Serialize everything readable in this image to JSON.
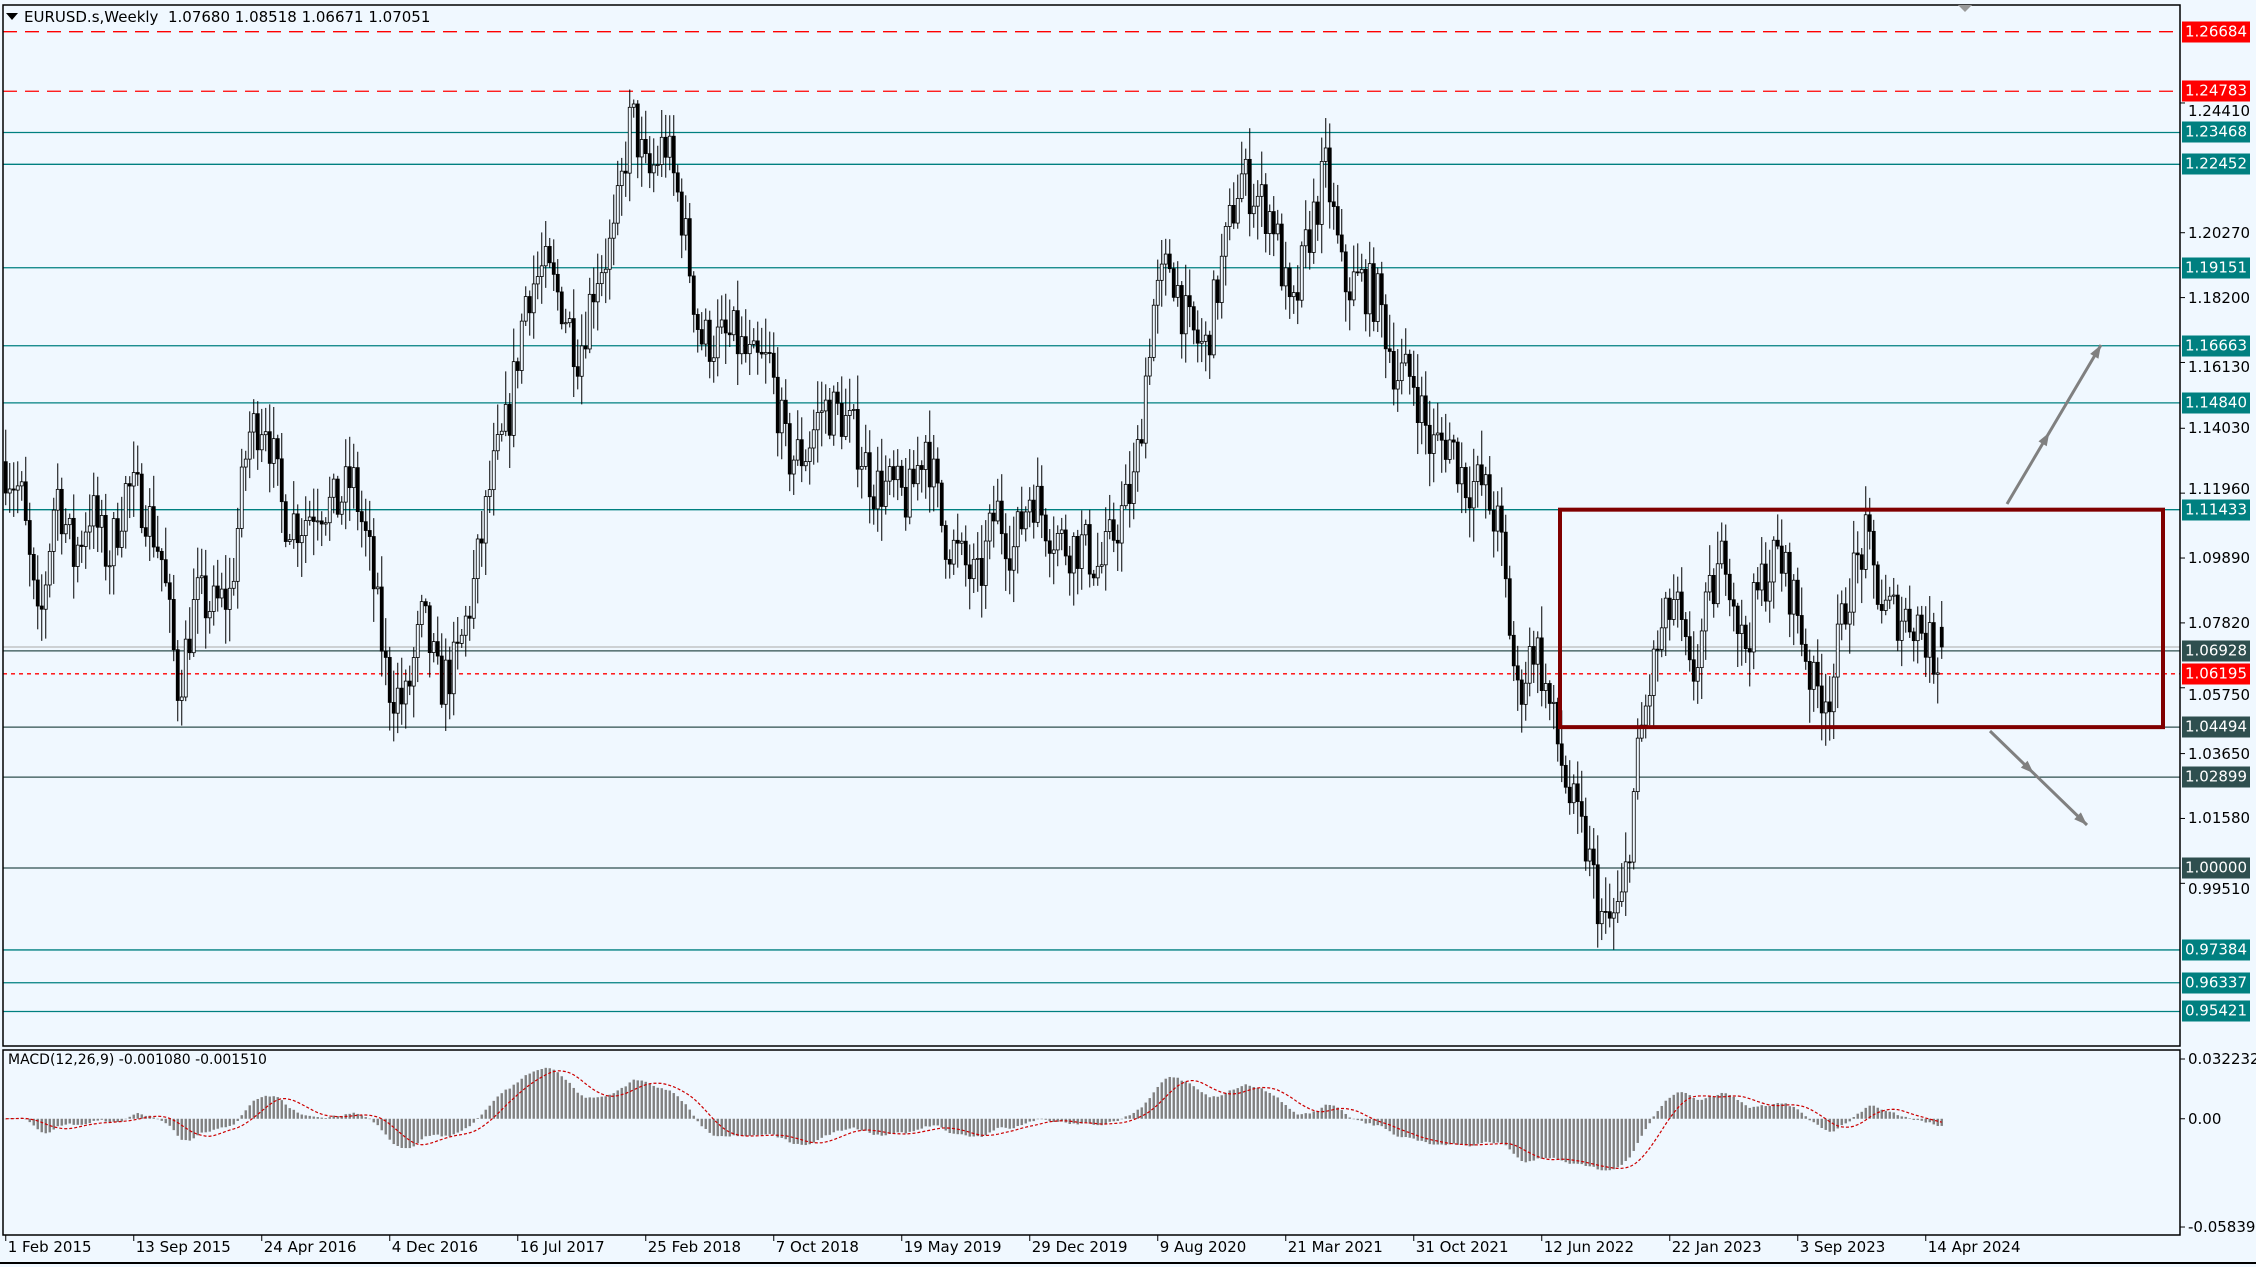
{
  "header": {
    "symbol": "EURUSD.s,Weekly",
    "ohlc": "1.07680 1.08518 1.06671 1.07051"
  },
  "macd_label": "MACD(12,26,9) -0.001080 -0.001510",
  "colors": {
    "background": "#f0f8ff",
    "teal_level": "#008080",
    "slate_level": "#2f4f4f",
    "red_level": "#ff0000",
    "box": "#800000",
    "arrow": "#808080",
    "macd_hist": "#808080",
    "macd_signal": "#cc0000",
    "bull_body": "#f0f8ff",
    "bear_body": "#000000"
  },
  "chart_data": {
    "type": "candlestick",
    "timeframe": "Weekly",
    "monthly_closes_start": "2015-01",
    "monthly_closes": [
      1.129,
      1.119,
      1.073,
      1.122,
      1.099,
      1.115,
      1.098,
      1.121,
      1.117,
      1.1,
      1.057,
      1.086,
      1.083,
      1.087,
      1.138,
      1.145,
      1.113,
      1.11,
      1.117,
      1.115,
      1.124,
      1.098,
      1.059,
      1.052,
      1.08,
      1.058,
      1.065,
      1.09,
      1.124,
      1.143,
      1.184,
      1.191,
      1.181,
      1.164,
      1.19,
      1.2,
      1.241,
      1.219,
      1.232,
      1.208,
      1.169,
      1.168,
      1.169,
      1.16,
      1.161,
      1.131,
      1.132,
      1.147,
      1.145,
      1.137,
      1.122,
      1.121,
      1.117,
      1.137,
      1.107,
      1.098,
      1.09,
      1.115,
      1.101,
      1.121,
      1.109,
      1.103,
      1.103,
      1.095,
      1.11,
      1.123,
      1.178,
      1.194,
      1.172,
      1.165,
      1.193,
      1.221,
      1.214,
      1.207,
      1.173,
      1.202,
      1.223,
      1.186,
      1.187,
      1.181,
      1.158,
      1.156,
      1.134,
      1.137,
      1.123,
      1.122,
      1.107,
      1.054,
      1.073,
      1.048,
      1.022,
      1.005,
      0.98,
      0.988,
      1.04,
      1.07,
      1.086,
      1.058,
      1.084,
      1.102,
      1.069,
      1.091,
      1.1,
      1.084,
      1.057,
      1.057,
      1.089,
      1.104,
      1.082,
      1.081,
      1.079,
      1.067,
      1.0705
    ],
    "last_bar": {
      "open": 1.0768,
      "high": 1.08518,
      "low": 1.06671,
      "close": 1.07051
    },
    "price_axis_ticks": [
      "1.24410",
      "1.20270",
      "1.18200",
      "1.16130",
      "1.14030",
      "1.11960",
      "1.09890",
      "1.07820",
      "1.05750",
      "1.03650",
      "1.01580",
      "0.99510"
    ],
    "levels": [
      {
        "value": "1.26684",
        "style": "dashed",
        "color": "#ff0000",
        "label_bg": "#ff0000"
      },
      {
        "value": "1.24783",
        "style": "dashed",
        "color": "#ff0000",
        "label_bg": "#ff0000"
      },
      {
        "value": "1.23468",
        "style": "solid",
        "color": "#008080",
        "label_bg": "#008080"
      },
      {
        "value": "1.22452",
        "style": "solid",
        "color": "#008080",
        "label_bg": "#008080"
      },
      {
        "value": "1.19151",
        "style": "solid",
        "color": "#008080",
        "label_bg": "#008080"
      },
      {
        "value": "1.16663",
        "style": "solid",
        "color": "#008080",
        "label_bg": "#008080"
      },
      {
        "value": "1.14840",
        "style": "solid",
        "color": "#008080",
        "label_bg": "#008080"
      },
      {
        "value": "1.11433",
        "style": "solid",
        "color": "#008080",
        "label_bg": "#008080"
      },
      {
        "value": "1.06928",
        "style": "solid",
        "color": "#2f4f4f",
        "label_bg": "#2f4f4f"
      },
      {
        "value": "1.06195",
        "style": "dotted",
        "color": "#ff0000",
        "label_bg": "#ff0000"
      },
      {
        "value": "1.04494",
        "style": "solid",
        "color": "#2f4f4f",
        "label_bg": "#2f4f4f"
      },
      {
        "value": "1.02899",
        "style": "solid",
        "color": "#2f4f4f",
        "label_bg": "#2f4f4f"
      },
      {
        "value": "1.00000",
        "style": "solid",
        "color": "#2f4f4f",
        "label_bg": "#2f4f4f"
      },
      {
        "value": "0.97384",
        "style": "solid",
        "color": "#008080",
        "label_bg": "#008080"
      },
      {
        "value": "0.96337",
        "style": "solid",
        "color": "#008080",
        "label_bg": "#008080"
      },
      {
        "value": "0.95421",
        "style": "solid",
        "color": "#008080",
        "label_bg": "#008080"
      }
    ],
    "current_price": "1.07051",
    "range_box": {
      "top": 1.11433,
      "bottom": 1.04494,
      "from": "2022-12",
      "to": "2025-04"
    },
    "macd_axis_ticks": [
      "0.032232",
      "0.00",
      "-0.058391"
    ],
    "macd_range": [
      -0.058391,
      0.032232
    ],
    "date_labels": [
      "1 Feb 2015",
      "13 Sep 2015",
      "24 Apr 2016",
      "4 Dec 2016",
      "16 Jul 2017",
      "25 Feb 2018",
      "7 Oct 2018",
      "19 May 2019",
      "29 Dec 2019",
      "9 Aug 2020",
      "21 Mar 2021",
      "31 Oct 2021",
      "12 Jun 2022",
      "22 Jan 2023",
      "3 Sep 2023",
      "14 Apr 2024"
    ]
  }
}
